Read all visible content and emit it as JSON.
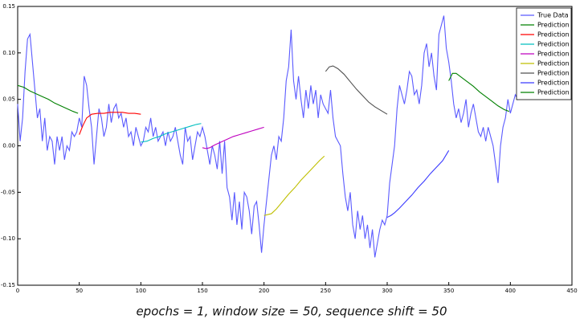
{
  "chart_data": {
    "type": "line",
    "caption": "epochs = 1, window size = 50, sequence shift = 50",
    "xlim": [
      0,
      450
    ],
    "xticks": [
      0,
      50,
      100,
      150,
      200,
      250,
      300,
      350,
      400,
      450
    ],
    "ylim": [
      -0.15,
      0.15
    ],
    "yticks": [
      -0.15,
      {
        "value": -0.1,
        "label": "-0.10"
      },
      -0.05,
      {
        "value": 0,
        "label": "0.00"
      },
      0.05,
      {
        "value": 0.1,
        "label": "0.10"
      },
      0.15
    ],
    "legend": "upper right",
    "series": [
      {
        "name": "True Data",
        "color": "#5a5aff",
        "x": [
          0,
          2,
          4,
          6,
          8,
          10,
          12,
          14,
          16,
          18,
          20,
          22,
          24,
          26,
          28,
          30,
          32,
          34,
          36,
          38,
          40,
          42,
          44,
          46,
          48,
          50,
          52,
          54,
          56,
          58,
          60,
          62,
          64,
          66,
          68,
          70,
          72,
          74,
          76,
          78,
          80,
          82,
          84,
          86,
          88,
          90,
          92,
          94,
          96,
          98,
          100,
          102,
          104,
          106,
          108,
          110,
          112,
          114,
          116,
          118,
          120,
          122,
          124,
          126,
          128,
          130,
          132,
          134,
          136,
          138,
          140,
          142,
          144,
          146,
          148,
          150,
          152,
          154,
          156,
          158,
          160,
          162,
          164,
          166,
          168,
          170,
          172,
          174,
          176,
          178,
          180,
          182,
          184,
          186,
          188,
          190,
          192,
          194,
          196,
          198,
          200,
          202,
          204,
          206,
          208,
          210,
          212,
          214,
          216,
          218,
          220,
          222,
          224,
          226,
          228,
          230,
          232,
          234,
          236,
          238,
          240,
          242,
          244,
          246,
          248,
          250,
          252,
          254,
          256,
          258,
          260,
          262,
          264,
          266,
          268,
          270,
          272,
          274,
          276,
          278,
          280,
          282,
          284,
          286,
          288,
          290,
          292,
          294,
          296,
          298,
          300,
          302,
          304,
          306,
          308,
          310,
          312,
          314,
          316,
          318,
          320,
          322,
          324,
          326,
          328,
          330,
          332,
          334,
          336,
          338,
          340,
          342,
          344,
          346,
          348,
          350,
          352,
          354,
          356,
          358,
          360,
          362,
          364,
          366,
          368,
          370,
          372,
          374,
          376,
          378,
          380,
          382,
          384,
          386,
          388,
          390,
          392,
          394,
          396,
          398,
          400,
          402,
          404,
          406,
          408,
          410
        ],
        "values": [
          0.045,
          0.005,
          0.03,
          0.08,
          0.115,
          0.12,
          0.09,
          0.06,
          0.03,
          0.04,
          0.005,
          0.03,
          -0.005,
          0.01,
          0.005,
          -0.02,
          0.01,
          -0.005,
          0.01,
          -0.015,
          0.0,
          -0.005,
          0.015,
          0.01,
          0.015,
          0.03,
          0.02,
          0.075,
          0.065,
          0.04,
          0.02,
          -0.02,
          0.01,
          0.04,
          0.03,
          0.01,
          0.02,
          0.045,
          0.025,
          0.04,
          0.045,
          0.03,
          0.035,
          0.02,
          0.03,
          0.01,
          0.015,
          0.0,
          0.02,
          0.01,
          0.0,
          0.005,
          0.02,
          0.015,
          0.03,
          0.01,
          0.02,
          0.005,
          0.01,
          0.015,
          0.0,
          0.015,
          0.005,
          0.01,
          0.02,
          0.005,
          -0.01,
          -0.02,
          0.02,
          0.005,
          0.01,
          -0.015,
          0.0,
          0.015,
          0.01,
          0.02,
          0.01,
          -0.005,
          -0.02,
          0.0,
          -0.01,
          -0.025,
          0.005,
          -0.03,
          0.005,
          -0.045,
          -0.055,
          -0.08,
          -0.05,
          -0.085,
          -0.06,
          -0.09,
          -0.05,
          -0.055,
          -0.07,
          -0.095,
          -0.065,
          -0.06,
          -0.085,
          -0.115,
          -0.085,
          -0.06,
          -0.035,
          -0.01,
          0.0,
          -0.015,
          0.01,
          0.005,
          0.03,
          0.07,
          0.085,
          0.125,
          0.07,
          0.05,
          0.075,
          0.05,
          0.03,
          0.06,
          0.04,
          0.065,
          0.045,
          0.06,
          0.03,
          0.055,
          0.045,
          0.04,
          0.035,
          0.06,
          0.03,
          0.01,
          0.005,
          0.0,
          -0.03,
          -0.055,
          -0.07,
          -0.05,
          -0.085,
          -0.1,
          -0.07,
          -0.09,
          -0.075,
          -0.1,
          -0.085,
          -0.11,
          -0.09,
          -0.12,
          -0.105,
          -0.09,
          -0.08,
          -0.085,
          -0.075,
          -0.04,
          -0.02,
          0.0,
          0.04,
          0.065,
          0.055,
          0.045,
          0.06,
          0.08,
          0.075,
          0.055,
          0.06,
          0.045,
          0.065,
          0.1,
          0.11,
          0.085,
          0.1,
          0.075,
          0.06,
          0.12,
          0.13,
          0.14,
          0.105,
          0.09,
          0.07,
          0.045,
          0.03,
          0.04,
          0.025,
          0.035,
          0.05,
          0.02,
          0.035,
          0.045,
          0.03,
          0.015,
          0.01,
          0.02,
          0.005,
          0.02,
          0.01,
          0.0,
          -0.02,
          -0.04,
          0.0,
          0.02,
          0.03,
          0.05,
          0.035,
          0.045,
          0.055,
          0.05,
          0.055,
          0.055
        ]
      },
      {
        "name": "Prediction",
        "color": "#008000",
        "x": [
          0,
          5,
          10,
          15,
          20,
          25,
          30,
          35,
          40,
          45,
          49
        ],
        "values": [
          0.065,
          0.063,
          0.059,
          0.056,
          0.053,
          0.05,
          0.046,
          0.043,
          0.04,
          0.037,
          0.035
        ]
      },
      {
        "name": "Prediction",
        "color": "#ff0000",
        "x": [
          50,
          53,
          56,
          60,
          65,
          70,
          75,
          80,
          85,
          90,
          95,
          100
        ],
        "values": [
          0.012,
          0.022,
          0.03,
          0.034,
          0.035,
          0.035,
          0.036,
          0.036,
          0.036,
          0.035,
          0.035,
          0.034
        ]
      },
      {
        "name": "Prediction",
        "color": "#00bfbf",
        "x": [
          100,
          105,
          110,
          115,
          120,
          125,
          130,
          135,
          140,
          145,
          149
        ],
        "values": [
          0.004,
          0.005,
          0.008,
          0.01,
          0.013,
          0.015,
          0.017,
          0.019,
          0.021,
          0.023,
          0.024
        ]
      },
      {
        "name": "Prediction",
        "color": "#bf00bf",
        "x": [
          150,
          153,
          156,
          160,
          165,
          170,
          175,
          180,
          185,
          190,
          195,
          200
        ],
        "values": [
          -0.002,
          -0.003,
          -0.002,
          0.001,
          0.004,
          0.007,
          0.01,
          0.012,
          0.014,
          0.016,
          0.018,
          0.02
        ]
      },
      {
        "name": "Prediction",
        "color": "#bfbf00",
        "x": [
          200,
          203,
          206,
          210,
          215,
          220,
          225,
          230,
          235,
          240,
          245,
          249
        ],
        "values": [
          -0.075,
          -0.074,
          -0.073,
          -0.068,
          -0.06,
          -0.052,
          -0.045,
          -0.037,
          -0.03,
          -0.023,
          -0.016,
          -0.011
        ]
      },
      {
        "name": "Prediction",
        "color": "#505050",
        "x": [
          250,
          253,
          256,
          260,
          265,
          270,
          275,
          280,
          285,
          290,
          295,
          300
        ],
        "values": [
          0.08,
          0.085,
          0.086,
          0.083,
          0.077,
          0.069,
          0.061,
          0.054,
          0.047,
          0.042,
          0.038,
          0.034
        ]
      },
      {
        "name": "Prediction",
        "color": "#3a3aff",
        "x": [
          300,
          303,
          306,
          310,
          315,
          320,
          325,
          330,
          335,
          340,
          345,
          350
        ],
        "values": [
          -0.077,
          -0.075,
          -0.072,
          -0.067,
          -0.06,
          -0.053,
          -0.045,
          -0.038,
          -0.03,
          -0.023,
          -0.016,
          -0.005
        ]
      },
      {
        "name": "Prediction",
        "color": "#008000",
        "x": [
          350,
          353,
          356,
          360,
          365,
          370,
          375,
          380,
          385,
          390,
          395,
          399
        ],
        "values": [
          0.07,
          0.078,
          0.078,
          0.074,
          0.069,
          0.064,
          0.058,
          0.053,
          0.048,
          0.043,
          0.039,
          0.037
        ]
      }
    ]
  }
}
